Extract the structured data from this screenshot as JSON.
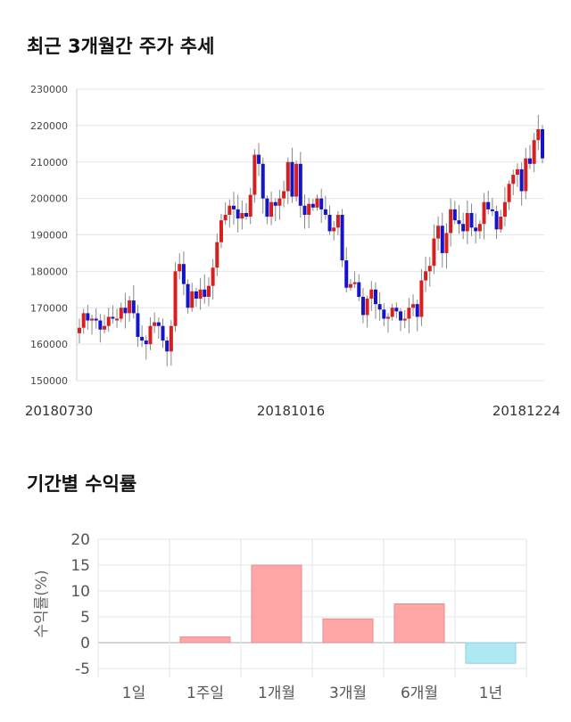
{
  "titles": {
    "price_trend": "최근 3개월간 주가 추세",
    "period_returns": "기간별 수익률"
  },
  "chart_data": [
    {
      "type": "candlestick",
      "ylim": [
        150000,
        230000
      ],
      "yticks": [
        150000,
        160000,
        170000,
        180000,
        190000,
        200000,
        210000,
        220000,
        230000
      ],
      "x_tick_labels": [
        "20180730",
        "20181016",
        "20181224"
      ],
      "grid": true,
      "colors": {
        "up": "#d61f1f",
        "down": "#1414c8",
        "wick": "#888888"
      },
      "close_series": [
        164500,
        168500,
        166500,
        167000,
        166500,
        164000,
        165000,
        167500,
        167000,
        167000,
        170000,
        168500,
        172000,
        168500,
        162000,
        161000,
        160000,
        165000,
        166000,
        165000,
        161000,
        158000,
        165000,
        180000,
        182000,
        176500,
        170000,
        174500,
        172500,
        175000,
        173000,
        176000,
        181000,
        188000,
        194000,
        195500,
        198000,
        197000,
        194500,
        196000,
        195000,
        201000,
        212000,
        209500,
        200000,
        195000,
        199000,
        198000,
        200000,
        202000,
        210000,
        200500,
        209500,
        198000,
        195500,
        198500,
        197500,
        200000,
        197000,
        195500,
        191000,
        192000,
        195500,
        183000,
        175500,
        176500,
        177000,
        173000,
        168000,
        172500,
        175000,
        171000,
        169500,
        167000,
        167500,
        170000,
        169000,
        166500,
        167000,
        170000,
        171000,
        167500,
        177500,
        180000,
        181500,
        189000,
        192500,
        185000,
        190500,
        197000,
        194000,
        193000,
        191000,
        196000,
        192000,
        191000,
        193000,
        199000,
        197000,
        196500,
        191500,
        195000,
        199000,
        204000,
        206500,
        208000,
        202000,
        211000,
        209500,
        216000,
        219000,
        211000
      ]
    },
    {
      "type": "bar",
      "categories": [
        "1일",
        "1주일",
        "1개월",
        "3개월",
        "6개월",
        "1년"
      ],
      "values": [
        0.0,
        1.1,
        15.0,
        4.6,
        7.5,
        -4.0
      ],
      "ylabel": "수익률(%)",
      "ylim": [
        -5,
        20
      ],
      "yticks": [
        -5,
        0,
        5,
        10,
        15,
        20
      ],
      "grid": true,
      "colors": {
        "positive": "#ffa6a6",
        "negative": "#aee8f2"
      }
    }
  ]
}
